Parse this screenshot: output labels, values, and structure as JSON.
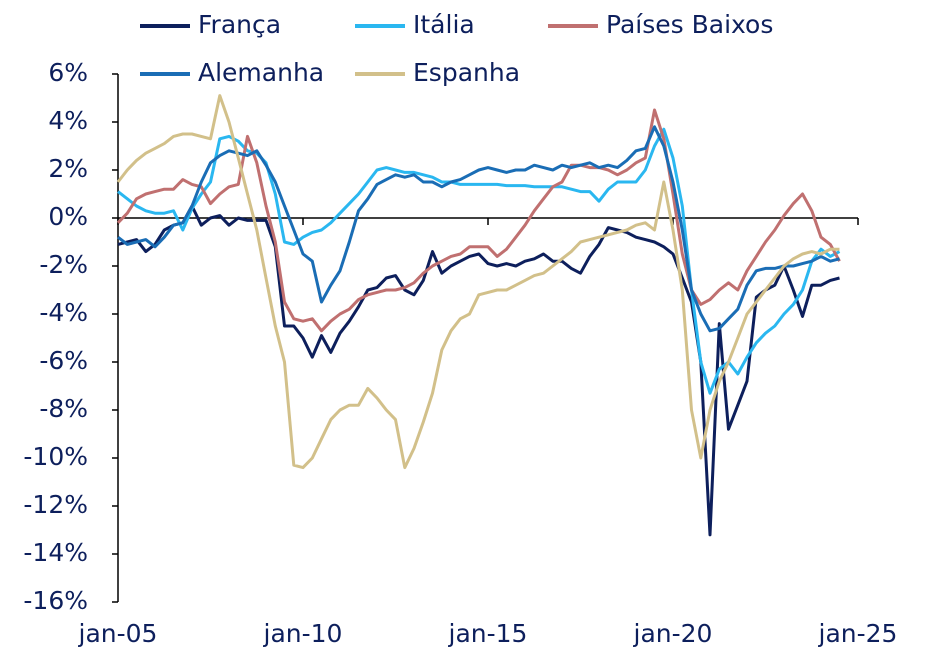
{
  "chart_data": {
    "type": "line",
    "x": [
      2005,
      2005.25,
      2005.5,
      2005.75,
      2006,
      2006.25,
      2006.5,
      2006.75,
      2007,
      2007.25,
      2007.5,
      2007.75,
      2008,
      2008.25,
      2008.5,
      2008.75,
      2009,
      2009.25,
      2009.5,
      2009.75,
      2010,
      2010.25,
      2010.5,
      2010.75,
      2011,
      2011.25,
      2011.5,
      2011.75,
      2012,
      2012.25,
      2012.5,
      2012.75,
      2013,
      2013.25,
      2013.5,
      2013.75,
      2014,
      2014.25,
      2014.5,
      2014.75,
      2015,
      2015.25,
      2015.5,
      2015.75,
      2016,
      2016.25,
      2016.5,
      2016.75,
      2017,
      2017.25,
      2017.5,
      2017.75,
      2018,
      2018.25,
      2018.5,
      2018.75,
      2019,
      2019.25,
      2019.5,
      2019.75,
      2020,
      2020.25,
      2020.5,
      2020.75,
      2021,
      2021.25,
      2021.5,
      2021.75,
      2022,
      2022.25,
      2022.5,
      2022.75,
      2023,
      2023.25,
      2023.5,
      2023.75,
      2024,
      2024.25,
      2024.5
    ],
    "series": [
      {
        "name": "França",
        "color": "#0d1f5c",
        "values": [
          -1.1,
          -1.0,
          -0.9,
          -1.4,
          -1.1,
          -0.5,
          -0.3,
          -0.2,
          0.5,
          -0.3,
          0.0,
          0.1,
          -0.3,
          0.0,
          -0.1,
          -0.1,
          -0.1,
          -1.2,
          -4.5,
          -4.5,
          -5.0,
          -5.8,
          -4.9,
          -5.6,
          -4.8,
          -4.3,
          -3.7,
          -3.0,
          -2.9,
          -2.5,
          -2.4,
          -3.0,
          -3.2,
          -2.6,
          -1.4,
          -2.3,
          -2.0,
          -1.8,
          -1.6,
          -1.5,
          -1.9,
          -2.0,
          -1.9,
          -2.0,
          -1.8,
          -1.7,
          -1.5,
          -1.8,
          -1.8,
          -2.1,
          -2.3,
          -1.6,
          -1.1,
          -0.4,
          -0.5,
          -0.6,
          -0.8,
          -0.9,
          -1.0,
          -1.2,
          -1.5,
          -2.5,
          -3.5,
          -6.0,
          -13.2,
          -4.4,
          -8.8,
          -7.8,
          -6.8,
          -3.3,
          -3.0,
          -2.8,
          -2.0,
          -3.0,
          -4.1,
          -2.8,
          -2.8,
          -2.6,
          -2.5
        ]
      },
      {
        "name": "Itália",
        "color": "#2ab7f0",
        "values": [
          1.1,
          0.8,
          0.5,
          0.3,
          0.2,
          0.2,
          0.3,
          -0.5,
          0.4,
          1.0,
          1.5,
          3.3,
          3.4,
          3.2,
          2.8,
          2.7,
          2.3,
          1.0,
          -1.0,
          -1.1,
          -0.8,
          -0.6,
          -0.5,
          -0.2,
          0.2,
          0.6,
          1.0,
          1.5,
          2.0,
          2.1,
          2.0,
          1.9,
          1.9,
          1.8,
          1.7,
          1.5,
          1.5,
          1.4,
          1.4,
          1.4,
          1.4,
          1.4,
          1.35,
          1.35,
          1.35,
          1.3,
          1.3,
          1.3,
          1.3,
          1.2,
          1.1,
          1.1,
          0.7,
          1.2,
          1.5,
          1.5,
          1.5,
          2.0,
          3.0,
          3.7,
          2.5,
          0.5,
          -3.0,
          -6.0,
          -7.3,
          -6.3,
          -6.0,
          -6.5,
          -5.8,
          -5.2,
          -4.8,
          -4.5,
          -4.0,
          -3.6,
          -3.0,
          -1.8,
          -1.3,
          -1.6,
          -1.4
        ]
      },
      {
        "name": "Países Baixos",
        "color": "#c07070",
        "values": [
          -0.2,
          0.2,
          0.8,
          1.0,
          1.1,
          1.2,
          1.2,
          1.6,
          1.4,
          1.3,
          0.6,
          1.0,
          1.3,
          1.4,
          3.4,
          2.3,
          0.5,
          -1.0,
          -3.5,
          -4.2,
          -4.3,
          -4.2,
          -4.7,
          -4.3,
          -4.0,
          -3.8,
          -3.4,
          -3.2,
          -3.1,
          -3.0,
          -3.0,
          -2.9,
          -2.7,
          -2.3,
          -2.0,
          -1.8,
          -1.6,
          -1.5,
          -1.2,
          -1.2,
          -1.2,
          -1.6,
          -1.3,
          -0.8,
          -0.3,
          0.3,
          0.8,
          1.3,
          1.5,
          2.2,
          2.2,
          2.1,
          2.1,
          2.0,
          1.8,
          2.0,
          2.3,
          2.5,
          4.5,
          3.3,
          1.0,
          -1.5,
          -3.0,
          -3.6,
          -3.4,
          -3.0,
          -2.7,
          -3.0,
          -2.2,
          -1.6,
          -1.0,
          -0.5,
          0.1,
          0.6,
          1.0,
          0.3,
          -0.8,
          -1.1,
          -1.8
        ]
      },
      {
        "name": "Alemanha",
        "color": "#1a6db5",
        "values": [
          -0.8,
          -1.1,
          -1.0,
          -0.9,
          -1.2,
          -0.8,
          -0.3,
          -0.2,
          0.5,
          1.5,
          2.3,
          2.6,
          2.8,
          2.7,
          2.6,
          2.8,
          2.2,
          1.5,
          0.5,
          -0.5,
          -1.5,
          -1.8,
          -3.5,
          -2.8,
          -2.2,
          -1.0,
          0.3,
          0.8,
          1.4,
          1.6,
          1.8,
          1.7,
          1.8,
          1.5,
          1.5,
          1.3,
          1.5,
          1.6,
          1.8,
          2.0,
          2.1,
          2.0,
          1.9,
          2.0,
          2.0,
          2.2,
          2.1,
          2.0,
          2.2,
          2.1,
          2.2,
          2.3,
          2.1,
          2.2,
          2.1,
          2.4,
          2.8,
          2.9,
          3.8,
          3.0,
          1.5,
          -0.5,
          -3.0,
          -4.0,
          -4.7,
          -4.6,
          -4.2,
          -3.8,
          -2.8,
          -2.2,
          -2.1,
          -2.1,
          -2.0,
          -2.0,
          -1.9,
          -1.8,
          -1.6,
          -1.8,
          -1.7
        ]
      },
      {
        "name": "Espanha",
        "color": "#d2c08a",
        "values": [
          1.5,
          2.0,
          2.4,
          2.7,
          2.9,
          3.1,
          3.4,
          3.5,
          3.5,
          3.4,
          3.3,
          5.1,
          4.0,
          2.5,
          1.0,
          -0.5,
          -2.5,
          -4.5,
          -6.0,
          -10.3,
          -10.4,
          -10.0,
          -9.2,
          -8.4,
          -8.0,
          -7.8,
          -7.8,
          -7.1,
          -7.5,
          -8.0,
          -8.4,
          -10.4,
          -9.6,
          -8.5,
          -7.3,
          -5.5,
          -4.7,
          -4.2,
          -4.0,
          -3.2,
          -3.1,
          -3.0,
          -3.0,
          -2.8,
          -2.6,
          -2.4,
          -2.3,
          -2.0,
          -1.7,
          -1.4,
          -1.0,
          -0.9,
          -0.8,
          -0.7,
          -0.6,
          -0.5,
          -0.3,
          -0.2,
          -0.5,
          1.5,
          -0.5,
          -3.0,
          -8.0,
          -10.0,
          -8.0,
          -6.8,
          -6.0,
          -5.0,
          -4.0,
          -3.5,
          -3.0,
          -2.5,
          -2.0,
          -1.7,
          -1.5,
          -1.4,
          -1.5,
          -1.3,
          -1.3
        ]
      }
    ],
    "xlim": [
      2005,
      2025
    ],
    "xticks": [
      {
        "value": 2005,
        "label": "jan-05"
      },
      {
        "value": 2010,
        "label": "jan-10"
      },
      {
        "value": 2015,
        "label": "jan-15"
      },
      {
        "value": 2020,
        "label": "jan-20"
      },
      {
        "value": 2025,
        "label": "jan-25"
      }
    ],
    "ylim": [
      -16,
      6
    ],
    "yticks": [
      {
        "value": -16,
        "label": "-16%"
      },
      {
        "value": -14,
        "label": "-14%"
      },
      {
        "value": -12,
        "label": "-12%"
      },
      {
        "value": -10,
        "label": "-10%"
      },
      {
        "value": -8,
        "label": "-8%"
      },
      {
        "value": -6,
        "label": "-6%"
      },
      {
        "value": -4,
        "label": "-4%"
      },
      {
        "value": -2,
        "label": "-2%"
      },
      {
        "value": 0,
        "label": "0%"
      },
      {
        "value": 2,
        "label": "2%"
      },
      {
        "value": 4,
        "label": "4%"
      },
      {
        "value": 6,
        "label": "6%"
      }
    ],
    "grid": false,
    "legend": "top"
  }
}
